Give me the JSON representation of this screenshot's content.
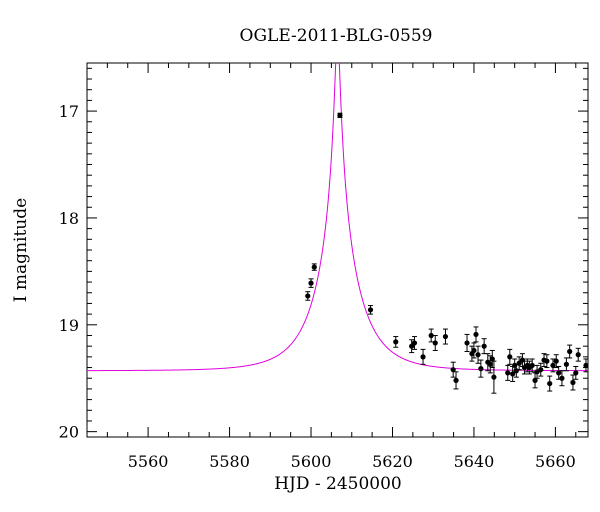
{
  "chart_data": {
    "type": "scatter",
    "title": "OGLE-2011-BLG-0559",
    "xlabel": "HJD - 2450000",
    "ylabel": "I magnitude",
    "xlim": [
      5545,
      5668
    ],
    "ylim": [
      20.05,
      16.55
    ],
    "y_inverted": true,
    "x_ticks": [
      5560,
      5580,
      5600,
      5620,
      5640,
      5660
    ],
    "y_ticks": [
      17,
      18,
      19,
      20
    ],
    "grid": false,
    "marker_color": "#000000",
    "model_color": "#e000e0",
    "series": [
      {
        "name": "",
        "kind": "points-with-errorbars",
        "x": [
          5599.2,
          5600.0,
          5600.8,
          5607.1,
          5614.6,
          5620.8,
          5624.7,
          5625.4,
          5627.5,
          5629.5,
          5630.5,
          5633.0,
          5634.9,
          5635.6,
          5638.3,
          5639.5,
          5640.0,
          5640.5,
          5641.0,
          5641.7,
          5642.5,
          5643.4,
          5644.0,
          5644.5,
          5644.9,
          5648.3,
          5648.8,
          5649.5,
          5650.0,
          5650.4,
          5651.1,
          5651.9,
          5652.4,
          5653.1,
          5653.6,
          5654.3,
          5655.0,
          5655.5,
          5656.4,
          5657.2,
          5657.9,
          5658.6,
          5659.4,
          5660.2,
          5660.8,
          5661.6,
          5662.7,
          5663.5,
          5664.3,
          5665.0,
          5665.6,
          5667.5
        ],
        "y": [
          18.73,
          18.61,
          18.46,
          17.04,
          18.86,
          19.16,
          19.2,
          19.17,
          19.3,
          19.1,
          19.17,
          19.11,
          19.42,
          19.52,
          19.17,
          19.27,
          19.24,
          19.09,
          19.28,
          19.41,
          19.2,
          19.35,
          19.37,
          19.32,
          19.49,
          19.45,
          19.3,
          19.46,
          19.38,
          19.43,
          19.36,
          19.33,
          19.4,
          19.38,
          19.4,
          19.38,
          19.52,
          19.44,
          19.42,
          19.33,
          19.34,
          19.55,
          19.38,
          19.34,
          19.45,
          19.5,
          19.37,
          19.25,
          19.54,
          19.45,
          19.28,
          19.38
        ],
        "yerr": [
          0.04,
          0.04,
          0.03,
          0.02,
          0.04,
          0.05,
          0.06,
          0.06,
          0.07,
          0.06,
          0.07,
          0.07,
          0.07,
          0.08,
          0.08,
          0.07,
          0.07,
          0.07,
          0.08,
          0.08,
          0.07,
          0.08,
          0.08,
          0.08,
          0.15,
          0.07,
          0.07,
          0.07,
          0.06,
          0.06,
          0.06,
          0.06,
          0.06,
          0.06,
          0.06,
          0.06,
          0.07,
          0.06,
          0.06,
          0.06,
          0.06,
          0.07,
          0.06,
          0.06,
          0.06,
          0.07,
          0.06,
          0.06,
          0.07,
          0.06,
          0.06,
          0.06
        ]
      },
      {
        "name": "",
        "kind": "model-curve",
        "model": "paczynski",
        "params": {
          "t0": 5606.5,
          "u0": 0.055,
          "tE": 10.0,
          "I_base": 19.43
        }
      }
    ]
  }
}
